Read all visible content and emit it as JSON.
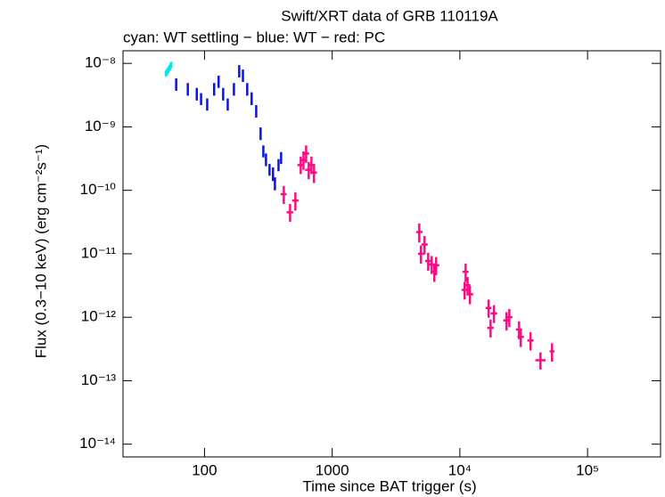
{
  "chart_data": {
    "type": "errorbar",
    "title": "Swift/XRT data of GRB 110119A",
    "subtitle": "cyan: WT settling − blue: WT − red: PC",
    "x_label": "Time since BAT trigger (s)",
    "y_label": "Flux (0.3−10 keV) (erg cm⁻²s⁻¹)",
    "xscale": "log",
    "yscale": "log",
    "xlim": [
      23,
      373000
    ],
    "ylim": [
      6.3e-15,
      1.58e-08
    ],
    "xticks": [
      100,
      1000,
      {
        "value": 10000,
        "label": "10⁴"
      },
      {
        "value": 100000,
        "label": "10⁵"
      }
    ],
    "yticks": [
      {
        "value": 1e-08,
        "label": "10⁻⁸"
      },
      {
        "value": 1e-09,
        "label": "10⁻⁹"
      },
      {
        "value": 1e-10,
        "label": "10⁻¹⁰"
      },
      {
        "value": 1e-11,
        "label": "10⁻¹¹"
      },
      {
        "value": 1e-12,
        "label": "10⁻¹²"
      },
      {
        "value": 1e-13,
        "label": "10⁻¹³"
      },
      {
        "value": 1e-14,
        "label": "10⁻¹⁴"
      }
    ],
    "series": [
      {
        "color": "#00e8f0",
        "x": [
          50,
          51,
          52,
          53,
          54,
          55
        ],
        "values": [
          7e-09,
          7.4e-09,
          7.9e-09,
          8.4e-09,
          8.9e-09,
          9.5e-09
        ],
        "y_low": [
          6.2e-09,
          6.5e-09,
          7e-09,
          7.4e-09,
          7.8e-09,
          8.4e-09
        ],
        "y_high": [
          7.8e-09,
          8.3e-09,
          8.8e-09,
          9.4e-09,
          1e-08,
          1.06e-08
        ]
      },
      {
        "color": "#0a14e6",
        "x": [
          60,
          74,
          87,
          94,
          105,
          119,
          129,
          140,
          152,
          170,
          187,
          200,
          216,
          234,
          254,
          275,
          289,
          303,
          323,
          344,
          356,
          380,
          398
        ],
        "values": [
          4.6e-09,
          3.9e-09,
          3.3e-09,
          2.7e-09,
          2.2e-09,
          3.9e-09,
          5.1e-09,
          3.3e-09,
          2.2e-09,
          3.9e-09,
          7.5e-09,
          6.4e-09,
          3.9e-09,
          2.8e-09,
          1.75e-09,
          7.8e-10,
          4.1e-10,
          3e-10,
          2.1e-10,
          1.8e-10,
          1.3e-10,
          2.5e-10,
          3.2e-10
        ],
        "y_low": [
          3.7e-09,
          3.1e-09,
          2.6e-09,
          2.2e-09,
          1.8e-09,
          3.1e-09,
          4.1e-09,
          2.6e-09,
          1.8e-09,
          3.1e-09,
          6e-09,
          5.1e-09,
          3.1e-09,
          2.2e-09,
          1.4e-09,
          6.2e-10,
          3.3e-10,
          2.4e-10,
          1.7e-10,
          1.4e-10,
          1e-10,
          2e-10,
          2.6e-10
        ],
        "y_high": [
          5.8e-09,
          4.9e-09,
          4.1e-09,
          3.4e-09,
          2.8e-09,
          4.9e-09,
          6.4e-09,
          4.1e-09,
          2.8e-09,
          4.9e-09,
          9.4e-09,
          8e-09,
          4.9e-09,
          3.5e-09,
          2.2e-09,
          9.8e-10,
          5.1e-10,
          3.8e-10,
          2.6e-10,
          2.3e-10,
          1.6e-10,
          3.1e-10,
          4e-10
        ]
      },
      {
        "color": "#ff0a84",
        "x": [
          418,
          468,
          515,
          567,
          596,
          625,
          655,
          688,
          721,
          4810,
          4960,
          5290,
          5650,
          6020,
          6520,
          6310,
          11100,
          10900,
          11500,
          12000,
          16800,
          17400,
          18500,
          23200,
          24400,
          29100,
          30000,
          35800,
          42800,
          52700
        ],
        "values": [
          8.7e-11,
          4.5e-11,
          6.9e-11,
          2.5e-10,
          3e-10,
          3.8e-10,
          2.1e-10,
          2.5e-10,
          1.9e-10,
          2.2e-11,
          1e-11,
          1.4e-11,
          7.7e-12,
          6.8e-12,
          6.6e-12,
          5.2e-12,
          5.2e-12,
          2.7e-12,
          3.2e-12,
          2.3e-12,
          1.4e-12,
          6.8e-13,
          1.15e-12,
          8.9e-13,
          1e-12,
          6.4e-13,
          4.9e-13,
          4.3e-13,
          2.1e-13,
          2.9e-13
        ],
        "y_low": [
          6.1e-11,
          3.2e-11,
          4.8e-11,
          1.8e-10,
          2.1e-10,
          2.7e-10,
          1.5e-10,
          1.8e-10,
          1.3e-10,
          1.5e-11,
          7e-12,
          9.8e-12,
          5.4e-12,
          4.8e-12,
          4.6e-12,
          3.6e-12,
          3.6e-12,
          1.9e-12,
          2.2e-12,
          1.6e-12,
          9.8e-13,
          4.8e-13,
          8.1e-13,
          6.2e-13,
          7e-13,
          4.5e-13,
          3.4e-13,
          3e-13,
          1.5e-13,
          2e-13
        ],
        "y_high": [
          1.17e-10,
          6.1e-11,
          9.3e-11,
          3.4e-10,
          4.1e-10,
          5.1e-10,
          2.8e-10,
          3.4e-10,
          2.6e-10,
          3e-11,
          1.35e-11,
          1.9e-11,
          1.04e-11,
          9.2e-12,
          8.9e-12,
          7e-12,
          7e-12,
          3.6e-12,
          4.3e-12,
          3.1e-12,
          1.9e-12,
          9.2e-13,
          1.55e-12,
          1.2e-12,
          1.35e-12,
          8.6e-13,
          6.6e-13,
          5.8e-13,
          2.8e-13,
          3.9e-13
        ],
        "x_low": [
          395,
          440,
          485,
          535,
          560,
          590,
          615,
          650,
          680,
          4550,
          4700,
          5000,
          5350,
          5700,
          6150,
          5950,
          10500,
          10300,
          10900,
          11300,
          15900,
          16400,
          17400,
          21900,
          23000,
          27500,
          28300,
          33800,
          39000,
          50500
        ],
        "x_high": [
          440,
          495,
          545,
          600,
          630,
          660,
          695,
          725,
          760,
          5100,
          5250,
          5600,
          5950,
          6350,
          6900,
          6650,
          11700,
          11500,
          12100,
          12700,
          17700,
          18400,
          19600,
          24500,
          25800,
          30700,
          31700,
          37800,
          47000,
          55000
        ]
      }
    ]
  }
}
